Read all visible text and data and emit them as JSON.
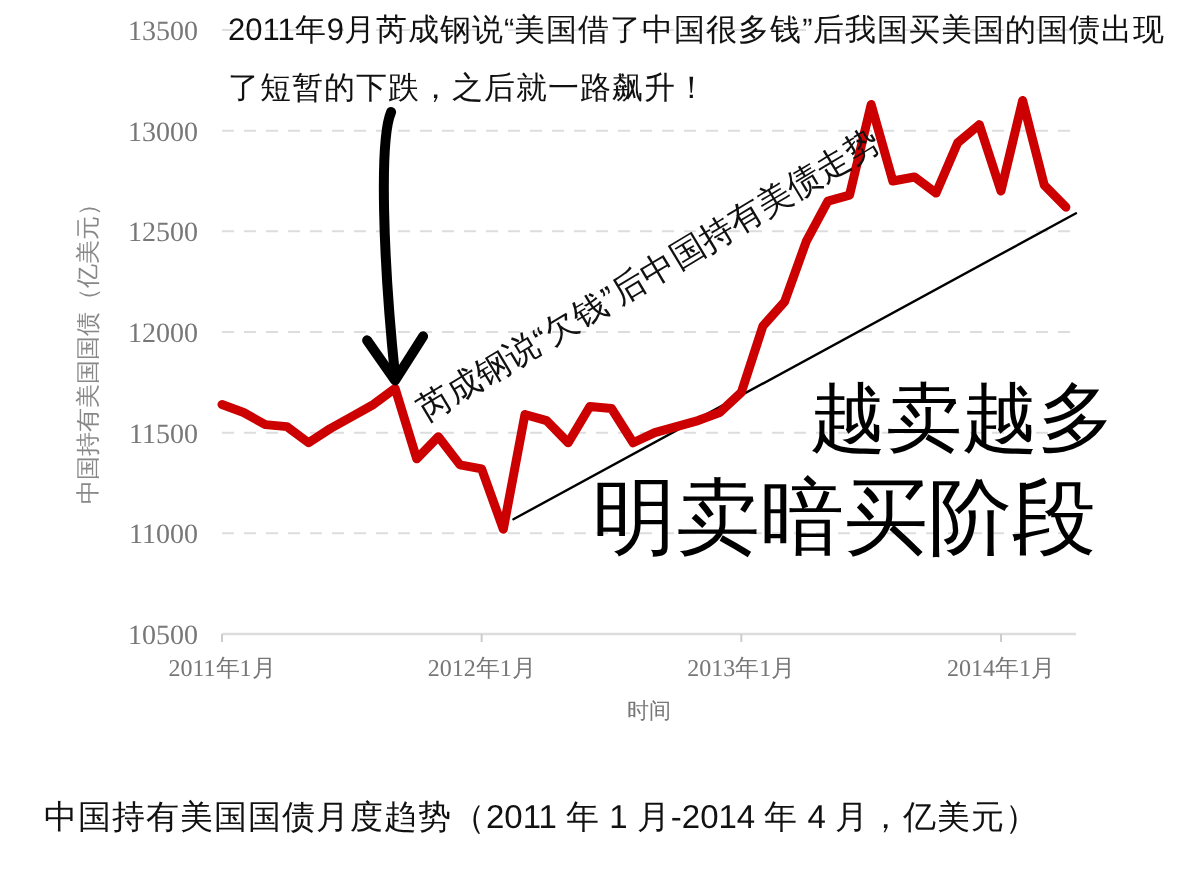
{
  "chart_data": {
    "type": "line",
    "title": "中国持有美国国债月度趋势（2011 年 1 月-2014 年 4 月，亿美元）",
    "xlabel": "时间",
    "ylabel": "中国持有美国国债（亿美元）",
    "x": [
      "2011-01",
      "2011-02",
      "2011-03",
      "2011-04",
      "2011-05",
      "2011-06",
      "2011-07",
      "2011-08",
      "2011-09",
      "2011-10",
      "2011-11",
      "2011-12",
      "2012-01",
      "2012-02",
      "2012-03",
      "2012-04",
      "2012-05",
      "2012-06",
      "2012-07",
      "2012-08",
      "2012-09",
      "2012-10",
      "2012-11",
      "2012-12",
      "2013-01",
      "2013-02",
      "2013-03",
      "2013-04",
      "2013-05",
      "2013-06",
      "2013-07",
      "2013-08",
      "2013-09",
      "2013-10",
      "2013-11",
      "2013-12",
      "2014-01",
      "2014-02",
      "2014-03",
      "2014-04"
    ],
    "series": [
      {
        "color": "#cc0000",
        "values": [
          11640,
          11600,
          11540,
          11530,
          11450,
          11520,
          11580,
          11640,
          11720,
          11370,
          11480,
          11340,
          11320,
          11020,
          11590,
          11560,
          11450,
          11630,
          11620,
          11450,
          11500,
          11530,
          11560,
          11600,
          11700,
          12030,
          12150,
          12450,
          12650,
          12680,
          13130,
          12750,
          12770,
          12690,
          12940,
          13030,
          12700,
          13150,
          12730,
          12620
        ]
      },
      {
        "type": "line",
        "color": "#000000",
        "x": [
          "2012-02-15",
          "2014-04-15"
        ],
        "values": [
          11070,
          12590
        ]
      }
    ],
    "xlim": [
      "2011-01",
      "2014-04-15"
    ],
    "ylim": [
      10500,
      13500
    ],
    "xticks": [
      {
        "value": "2011-01",
        "label": "2011年1月"
      },
      {
        "value": "2012-01",
        "label": "2012年1月"
      },
      {
        "value": "2013-01",
        "label": "2013年1月"
      },
      {
        "value": "2014-01",
        "label": "2014年1月"
      }
    ],
    "yticks": [
      10500,
      11000,
      11500,
      12000,
      12500,
      13000,
      13500
    ],
    "grid": "y",
    "annotations": [
      {
        "text": "2011年9月芮成钢说“美国借了中国很多钱”后我国买美国的国债出现了短暂的下跌，之后就一路飙升！",
        "x": "2011-09",
        "y": 11720
      },
      "芮成钢说“欠钱”后中国持有美债走势",
      "越卖越多",
      "明卖暗买阶段"
    ]
  }
}
